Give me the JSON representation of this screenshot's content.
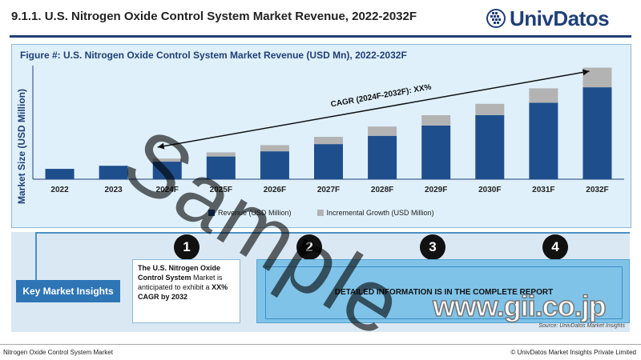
{
  "page_title": "9.1.1. U.S. Nitrogen Oxide Control System Market Revenue, 2022-2032F",
  "logo_text": "UnivDatos",
  "figure_title": "Figure #: U.S. Nitrogen Oxide Control System Market Revenue (USD Mn), 2022-2032F",
  "cagr_label": "CAGR (2024F-2032F): XX%",
  "watermark": "Sample",
  "gii_watermark": "www.gii.co.jp",
  "colors": {
    "revenue": "#1f4e8c",
    "incremental": "#b3b3b3",
    "accent": "#2e75b6"
  },
  "chart_data": {
    "type": "bar",
    "stacked": true,
    "categories": [
      "2022",
      "2023",
      "2024F",
      "2025F",
      "2026F",
      "2027F",
      "2028F",
      "2029F",
      "2030F",
      "2031F",
      "2032F"
    ],
    "series": [
      {
        "name": "Revenue (USD Million)",
        "values": [
          10,
          13,
          17,
          22,
          27,
          34,
          42,
          52,
          62,
          74,
          89
        ]
      },
      {
        "name": "Incremental Growth (USD Million)",
        "values": [
          0,
          0,
          3,
          4,
          6,
          7,
          9,
          10,
          11,
          14,
          19
        ]
      }
    ],
    "ylabel": "Market Size (USD Million)",
    "xlabel": "",
    "ylim": [
      0,
      110
    ],
    "legend_position": "bottom"
  },
  "insights": {
    "header": "Key Market Insights",
    "numbers": [
      "1",
      "2",
      "3",
      "4"
    ],
    "item1_bold1": "The U.S. Nitrogen Oxide Control System",
    "item1_mid": " Market is anticipated to exhibit a ",
    "item1_bold2": "XX% CAGR by 2032",
    "detail_text": "DETAILED INFORMATION IS IN THE COMPLETE REPORT"
  },
  "source": "Source: UnivDatos Market Insights",
  "footer_left": "Nitrogen Oxide Control System Market",
  "footer_right": "© UnivDatos Market Insights Private Limited"
}
